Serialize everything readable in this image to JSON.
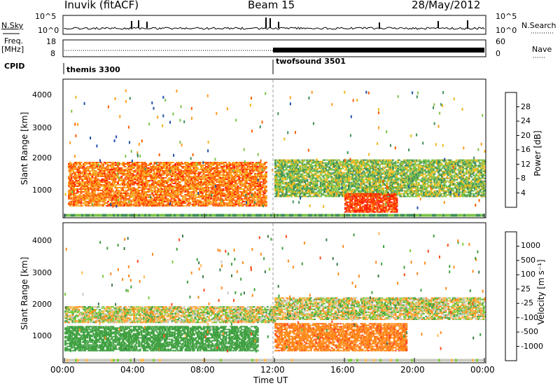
{
  "header": {
    "station": "Inuvik (fitACF)",
    "beam": "Beam 15",
    "date": "28/May/2012"
  },
  "summary": {
    "left_label_1": "N.Sky",
    "left_label_2": "Freq.",
    "left_label_3": "[MHz]",
    "left_label_4": "CPID",
    "right_label_1": "N.Search",
    "right_label_2": "Nave",
    "noise_ticks": [
      "10^5",
      "10^0"
    ],
    "freq_ticks": [
      "18",
      "8"
    ],
    "nave_ticks": [
      "60",
      "0"
    ],
    "cpid_1": "themis 3300",
    "cpid_2": "twofsound 3501"
  },
  "axes": {
    "x_label": "Time UT",
    "x_ticks": [
      "00:00",
      "04:00",
      "08:00",
      "12:00",
      "16:00",
      "20:00",
      "00:00"
    ],
    "y_label": "Slant Range [km]",
    "y_ticks": [
      "1000",
      "2000",
      "3000",
      "4000"
    ]
  },
  "power_scale": {
    "label": "Power [dB]",
    "ticks": [
      "28",
      "24",
      "20",
      "16",
      "12",
      "8",
      "4"
    ],
    "colors": [
      "#ff1a00",
      "#ff5a00",
      "#ff9a1a",
      "#f0b81a",
      "#7cc44a",
      "#3f8f5a",
      "#1f4fa8",
      "#1a1aff"
    ]
  },
  "velocity_scale": {
    "label": "Velocity [m s⁻¹]",
    "ticks": [
      "1000",
      "500",
      "100",
      "25",
      "-25",
      "-100",
      "-500",
      "-1000"
    ],
    "colors": [
      "#1a3fae",
      "#3c7a4a",
      "#3fa040",
      "#7ccc3a",
      "#c8c8c0",
      "#ffb84a",
      "#ff8a1a",
      "#ff4a1a",
      "#ee1a1a"
    ]
  },
  "chart_data": [
    {
      "type": "heatmap",
      "title": "Power",
      "xlabel": "Time UT",
      "ylabel": "Slant Range [km]",
      "x_range_hours": [
        0,
        24
      ],
      "y_range_km": [
        180,
        4600
      ],
      "colorbar": {
        "label": "Power [dB]",
        "range": [
          0,
          32
        ]
      },
      "features": [
        {
          "time_start_h": 0.2,
          "time_end_h": 11.5,
          "range_start_km": 500,
          "range_end_km": 1900,
          "power_db": 24
        },
        {
          "time_start_h": 12.0,
          "time_end_h": 24.0,
          "range_start_km": 800,
          "range_end_km": 2000,
          "power_db": 14
        },
        {
          "time_start_h": 16.0,
          "time_end_h": 19.0,
          "range_start_km": 300,
          "range_end_km": 900,
          "power_db": 28
        }
      ]
    },
    {
      "type": "heatmap",
      "title": "Velocity",
      "xlabel": "Time UT",
      "ylabel": "Slant Range [km]",
      "x_range_hours": [
        0,
        24
      ],
      "y_range_km": [
        180,
        4600
      ],
      "colorbar": {
        "label": "Velocity [m s⁻¹]",
        "range": [
          -1000,
          1000
        ]
      },
      "features": [
        {
          "time_start_h": 0.0,
          "time_end_h": 12.0,
          "range_start_km": 1400,
          "range_end_km": 1900,
          "velocity_ms": 0
        },
        {
          "time_start_h": 0.0,
          "time_end_h": 11.0,
          "range_start_km": 500,
          "range_end_km": 1300,
          "velocity_ms": 300
        },
        {
          "time_start_h": 12.0,
          "time_end_h": 19.5,
          "range_start_km": 500,
          "range_end_km": 1400,
          "velocity_ms": -400
        },
        {
          "time_start_h": 12.0,
          "time_end_h": 24.0,
          "range_start_km": 1500,
          "range_end_km": 2200,
          "velocity_ms": 0
        }
      ]
    }
  ]
}
